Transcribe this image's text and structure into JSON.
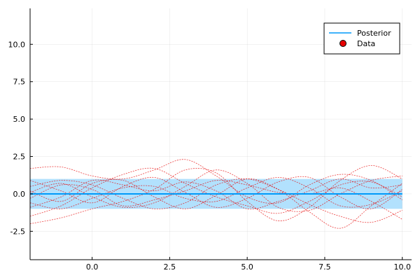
{
  "chart_data": {
    "type": "line",
    "title": "",
    "xlabel": "",
    "ylabel": "",
    "xlim": [
      -2.0,
      10.3
    ],
    "ylim": [
      -4.4,
      12.4
    ],
    "x_ticks": [
      0.0,
      2.5,
      5.0,
      7.5,
      10.0
    ],
    "x_tick_labels": [
      "0.0",
      "2.5",
      "5.0",
      "7.5",
      "10.0"
    ],
    "y_ticks": [
      -2.5,
      0.0,
      2.5,
      5.0,
      7.5,
      10.0
    ],
    "y_tick_labels": [
      "-2.5",
      "0.0",
      "2.5",
      "5.0",
      "7.5",
      "10.0"
    ],
    "grid": true,
    "legend_position": "top-right",
    "legend": [
      {
        "label": "Posterior",
        "kind": "line",
        "color": "#009AFA"
      },
      {
        "label": "Data",
        "kind": "marker",
        "color": "#E60000"
      }
    ],
    "posterior": {
      "x_range": [
        -2.0,
        10.0
      ],
      "mean": 0.0,
      "lower": -1.0,
      "upper": 1.0,
      "line_color": "#009AFA",
      "band_color": "#009AFA",
      "band_opacity": 0.3
    },
    "samples": {
      "color": "#E60000",
      "style": "dashed",
      "x": [
        -2.0,
        -1.0,
        0.0,
        1.0,
        2.0,
        3.0,
        4.0,
        5.0,
        6.0,
        7.0,
        8.0,
        9.0,
        10.0
      ],
      "series": [
        [
          1.7,
          1.8,
          1.2,
          1.0,
          1.6,
          2.3,
          1.2,
          -0.2,
          -0.6,
          0.6,
          1.3,
          0.9,
          -0.4
        ],
        [
          -2.0,
          -1.6,
          -1.0,
          -0.5,
          0.3,
          1.6,
          1.4,
          -0.5,
          -1.8,
          -0.9,
          0.9,
          1.9,
          1.0
        ],
        [
          -0.3,
          0.6,
          0.3,
          -0.8,
          -0.4,
          0.2,
          0.9,
          0.6,
          0.1,
          0.0,
          0.4,
          -0.5,
          -1.7
        ],
        [
          0.9,
          0.2,
          -0.6,
          0.5,
          1.1,
          0.1,
          -0.9,
          -0.3,
          0.8,
          1.1,
          -0.2,
          -1.0,
          0.3
        ],
        [
          -0.6,
          -1.0,
          -0.3,
          0.4,
          0.5,
          -0.3,
          -0.5,
          0.4,
          1.1,
          0.4,
          -0.8,
          -0.7,
          0.2
        ],
        [
          0.2,
          -0.5,
          0.7,
          0.9,
          -0.2,
          -1.0,
          -0.1,
          1.0,
          0.3,
          -1.2,
          -2.3,
          -0.8,
          0.7
        ],
        [
          -1.5,
          -0.8,
          0.4,
          1.3,
          1.7,
          0.7,
          -0.2,
          -0.8,
          -1.3,
          -0.5,
          0.6,
          0.8,
          -0.2
        ],
        [
          0.5,
          0.9,
          0.6,
          -0.3,
          -1.0,
          -0.6,
          0.6,
          1.0,
          0.3,
          -0.7,
          -1.5,
          -1.9,
          -1.1
        ],
        [
          -0.9,
          -0.2,
          0.9,
          0.6,
          0.2,
          0.8,
          0.2,
          -1.0,
          -0.5,
          0.2,
          1.0,
          0.4,
          0.6
        ],
        [
          0.1,
          0.7,
          -0.2,
          -0.9,
          -0.6,
          0.5,
          1.6,
          0.7,
          -0.9,
          -1.1,
          0.0,
          0.9,
          1.2
        ]
      ]
    }
  }
}
